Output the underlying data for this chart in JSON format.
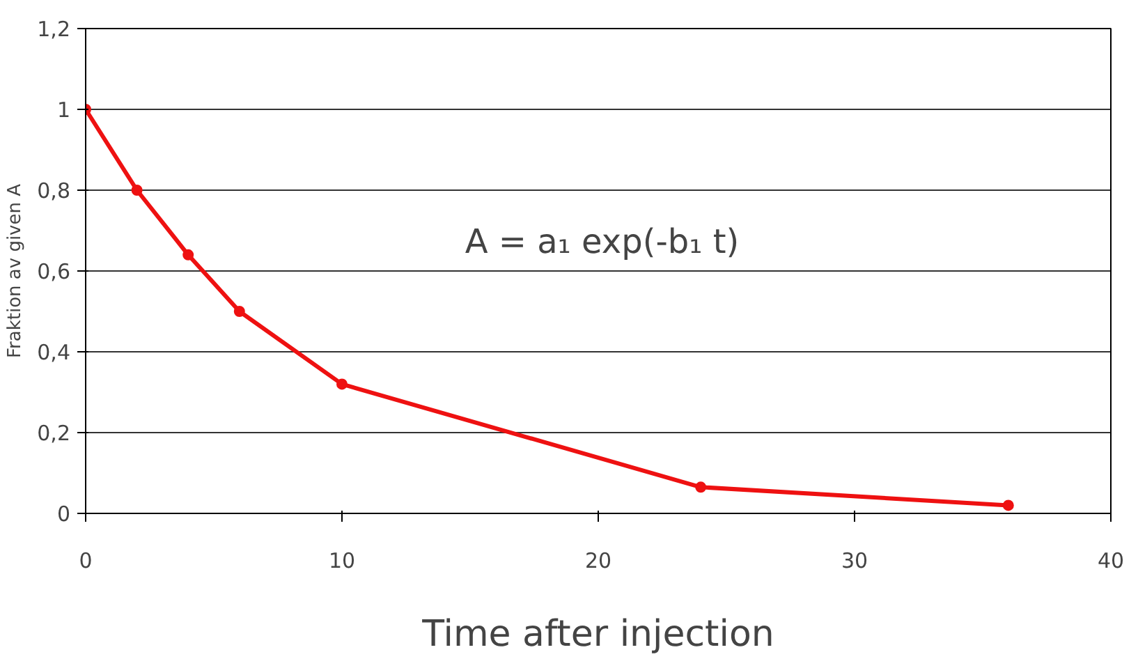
{
  "chart_data": {
    "type": "line",
    "xlabel": "Time after injection",
    "ylabel": "Fraktion av given A",
    "x": [
      0,
      2,
      4,
      6,
      10,
      24,
      36
    ],
    "series": [
      {
        "color": "#ee1111",
        "values": [
          1.0,
          0.8,
          0.64,
          0.5,
          0.32,
          0.065,
          0.02
        ]
      }
    ],
    "xlim": [
      0,
      40
    ],
    "xticks": [
      0,
      10,
      20,
      30,
      40
    ],
    "ylim": [
      0,
      1.2
    ],
    "yticks": [
      0,
      {
        "value": 0.2,
        "label": "0,2"
      },
      {
        "value": 0.4,
        "label": "0,4"
      },
      {
        "value": 0.6,
        "label": "0,6"
      },
      {
        "value": 0.8,
        "label": "0,8"
      },
      1,
      {
        "value": 1.2,
        "label": "1,2"
      }
    ],
    "grid": "y",
    "marker": "circle",
    "line_style": "solid",
    "annotations": [
      "A = a₁ exp(-b₁ t)"
    ]
  }
}
